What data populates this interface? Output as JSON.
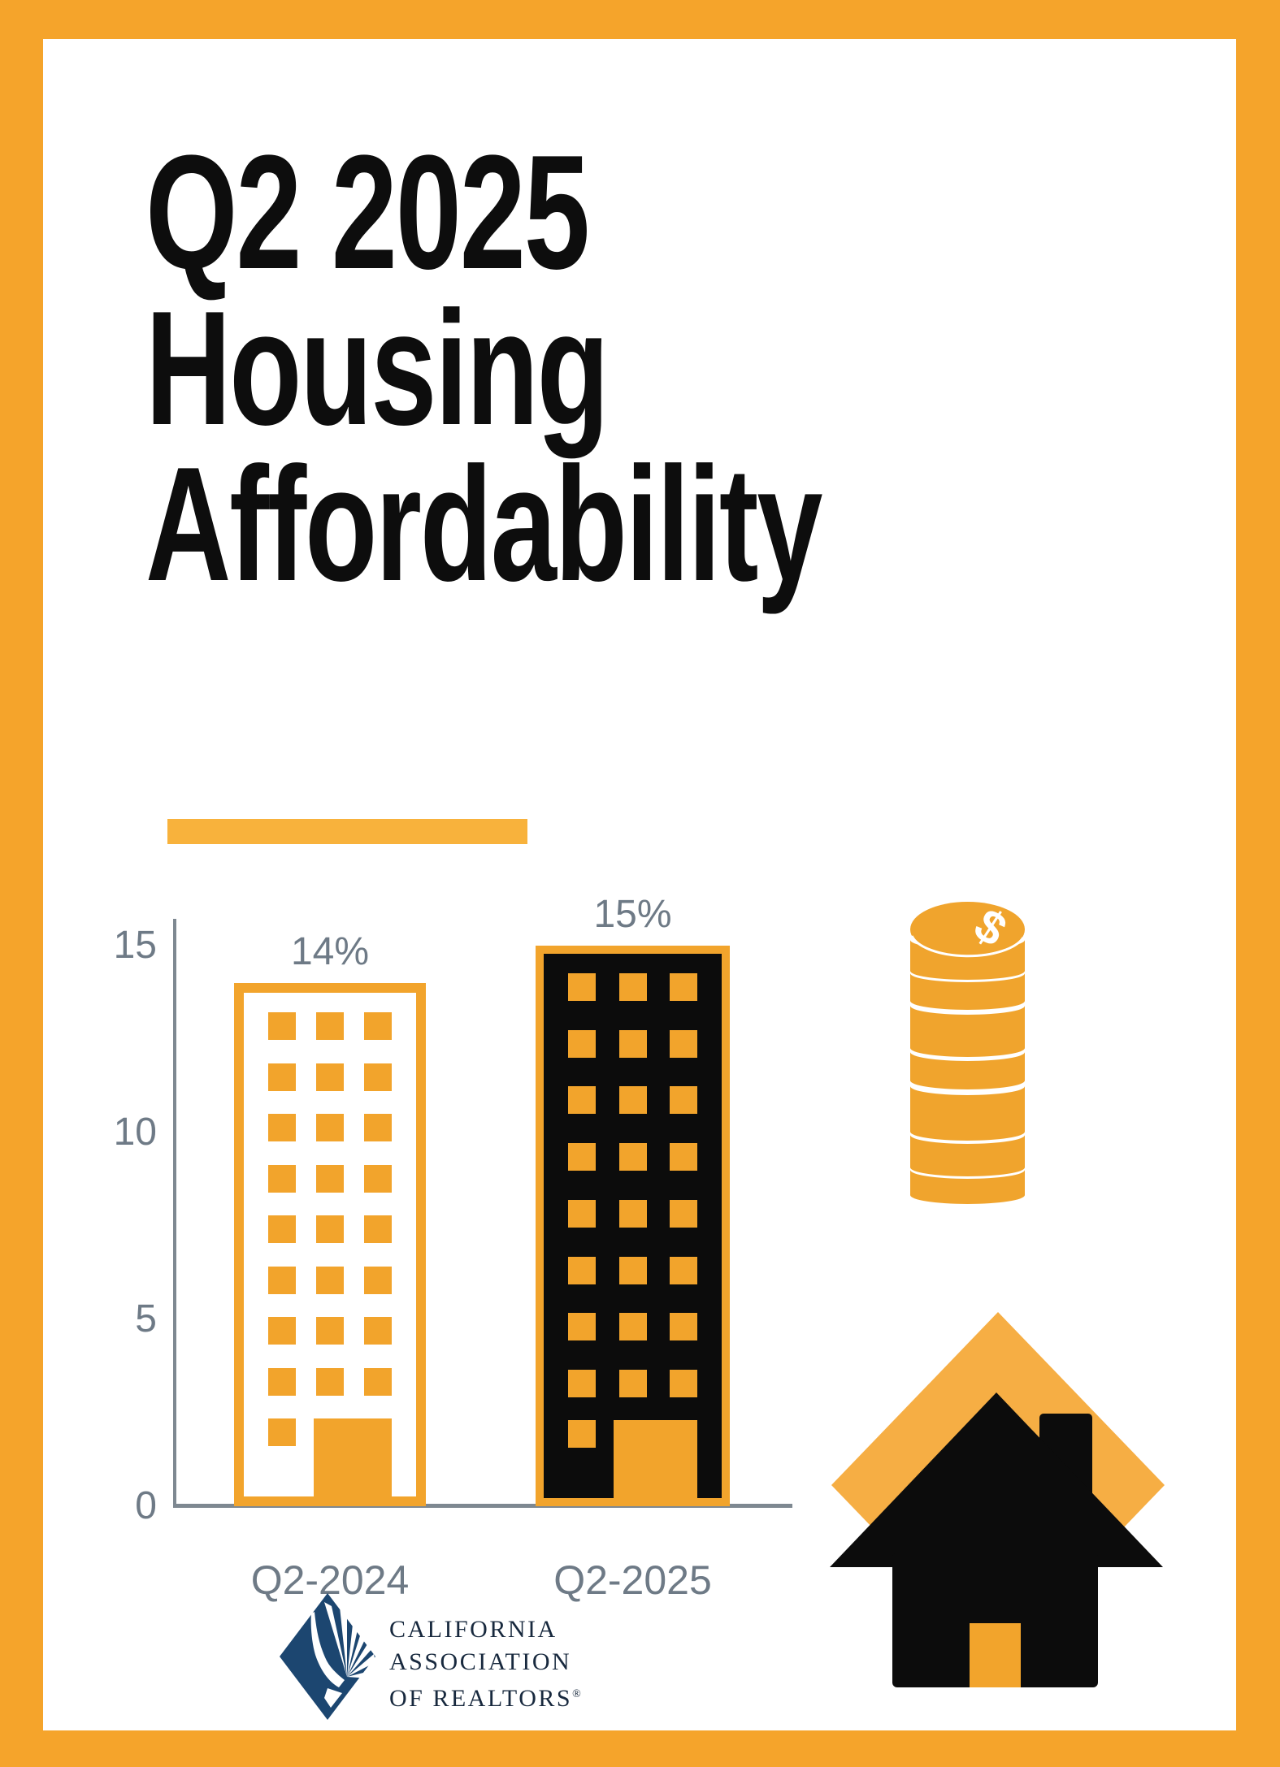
{
  "page": {
    "background": "#FFFFFF",
    "frame_color": "#F5A42B"
  },
  "title": {
    "lines": [
      "Q2 2025",
      "Housing",
      "Affordability"
    ],
    "text_color": "#0D0D0D",
    "accent_bar_color": "#F8B23C"
  },
  "chart_data": {
    "type": "bar",
    "categories": [
      "Q2-2024",
      "Q2-2025"
    ],
    "values": [
      14,
      15
    ],
    "data_labels": [
      "14%",
      "15%"
    ],
    "ylim": [
      0,
      15
    ],
    "yticks": [
      "15",
      "10",
      "5",
      "0"
    ],
    "grid": false,
    "legend": "none",
    "bar_style": "building-pictogram",
    "building": {
      "window_rows": 8,
      "window_cols": 3
    },
    "colors": {
      "bar_q2_2024_fill": "#FFFFFF",
      "bar_q2_2024_outline": "#F2A42C",
      "bar_q2_2025_fill": "#0C0C0C",
      "bar_q2_2025_outline": "#F2A42C",
      "windows": "#F2A42C",
      "axis": "#7E8891",
      "labels": "#6E7A86"
    }
  },
  "icons": {
    "coin_stack": {
      "semantic": "coin-stack-dollar-icon",
      "color": "#F0A42D",
      "dollar_symbol": "$"
    },
    "house": {
      "semantic": "house-icon",
      "diamond_color": "#F6AE44",
      "house_color": "#0C0C0C",
      "door_color": "#F2A42C"
    }
  },
  "logo": {
    "text_lines": [
      "CALIFORNIA",
      "ASSOCIATION",
      "OF REALTORS"
    ],
    "registered_mark": "®",
    "diamond_color": "#1C4670",
    "text_color": "#18293E"
  }
}
